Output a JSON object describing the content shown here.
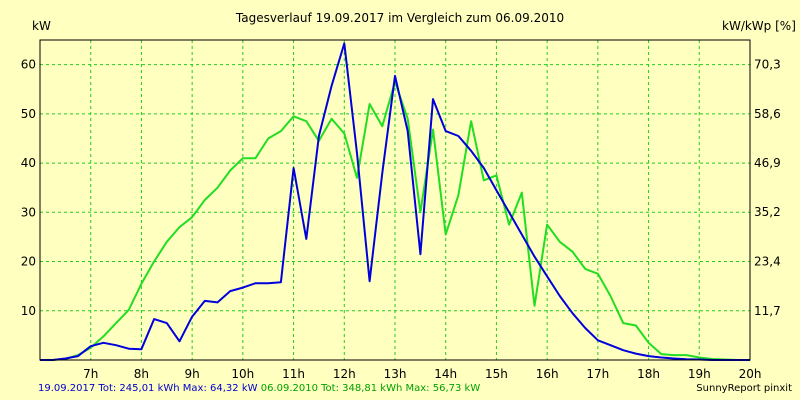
{
  "chart_data": {
    "type": "line",
    "title": "Tagesverlauf 19.09.2017 im Vergleich zum 06.09.2010",
    "ylabel_left": "kW",
    "ylabel_right": "kW/kWp [%]",
    "ylim": [
      0,
      65
    ],
    "xlim": [
      6.0,
      20.0
    ],
    "grid": true,
    "x_ticks": [
      7,
      8,
      9,
      10,
      11,
      12,
      13,
      14,
      15,
      16,
      17,
      18,
      19,
      20
    ],
    "x_tick_labels": [
      "7h",
      "8h",
      "9h",
      "10h",
      "11h",
      "12h",
      "13h",
      "14h",
      "15h",
      "16h",
      "17h",
      "18h",
      "19h",
      "20h"
    ],
    "y_left_ticks": [
      10,
      20,
      30,
      40,
      50,
      60
    ],
    "y_left_tick_labels": [
      "10",
      "20",
      "30",
      "40",
      "50",
      "60"
    ],
    "y_right_ticks": [
      11.7,
      23.4,
      35.2,
      46.9,
      58.6,
      70.3
    ],
    "y_right_tick_labels": [
      "11,7",
      "23,4",
      "35,2",
      "46,9",
      "58,6",
      "70,3"
    ],
    "series": [
      {
        "color": "#0000dd",
        "x": [
          6.0,
          6.25,
          6.5,
          6.75,
          7.0,
          7.25,
          7.5,
          7.75,
          8.0,
          8.25,
          8.5,
          8.75,
          9.0,
          9.25,
          9.5,
          9.75,
          10.0,
          10.25,
          10.5,
          10.75,
          11.0,
          11.25,
          11.5,
          11.75,
          12.0,
          12.25,
          12.5,
          12.75,
          13.0,
          13.25,
          13.5,
          13.75,
          14.0,
          14.25,
          14.5,
          14.75,
          15.0,
          15.25,
          15.5,
          15.75,
          16.0,
          16.25,
          16.5,
          16.75,
          17.0,
          17.25,
          17.5,
          17.75,
          18.0,
          18.25,
          18.5,
          18.75,
          19.0,
          19.25,
          19.5,
          19.75,
          20.0
        ],
        "values": [
          0,
          0,
          0.3,
          0.8,
          2.8,
          3.5,
          3.0,
          2.3,
          2.2,
          8.3,
          7.5,
          3.8,
          8.8,
          12.0,
          11.7,
          14.0,
          14.7,
          15.6,
          15.6,
          15.8,
          39.0,
          24.6,
          45.5,
          55.7,
          64.3,
          42.0,
          16.0,
          38.0,
          57.7,
          46.5,
          21.5,
          53.0,
          46.5,
          45.5,
          42.5,
          39.0,
          34.5,
          30.0,
          25.5,
          21.0,
          17.0,
          13.0,
          9.5,
          6.5,
          4.0,
          3.0,
          2.0,
          1.3,
          0.8,
          0.5,
          0.3,
          0.15,
          0.1,
          0,
          0,
          0,
          0
        ]
      },
      {
        "color": "#22dd22",
        "x": [
          6.0,
          6.25,
          6.5,
          6.75,
          7.0,
          7.25,
          7.5,
          7.75,
          8.0,
          8.25,
          8.5,
          8.75,
          9.0,
          9.25,
          9.5,
          9.75,
          10.0,
          10.25,
          10.5,
          10.75,
          11.0,
          11.25,
          11.5,
          11.75,
          12.0,
          12.25,
          12.5,
          12.75,
          13.0,
          13.25,
          13.5,
          13.75,
          14.0,
          14.25,
          14.5,
          14.75,
          15.0,
          15.25,
          15.5,
          15.75,
          16.0,
          16.25,
          16.5,
          16.75,
          17.0,
          17.25,
          17.5,
          17.75,
          18.0,
          18.25,
          18.5,
          18.75,
          19.0,
          19.25,
          19.5,
          19.75,
          20.0
        ],
        "values": [
          0,
          0,
          0.2,
          1.0,
          2.5,
          4.8,
          7.5,
          10.2,
          15.5,
          20.0,
          24.0,
          27.0,
          29.0,
          32.5,
          35.0,
          38.5,
          41.0,
          41.0,
          45.0,
          46.5,
          49.5,
          48.5,
          44.5,
          49.0,
          46.0,
          37.0,
          52.0,
          47.5,
          56.5,
          49.0,
          30.0,
          46.8,
          25.5,
          33.5,
          48.5,
          36.5,
          37.5,
          27.5,
          34.0,
          11.0,
          27.5,
          24.0,
          22.0,
          18.5,
          17.5,
          13.0,
          7.5,
          7.0,
          3.5,
          1.2,
          1.0,
          1.0,
          0.5,
          0.2,
          0.1,
          0,
          0
        ]
      }
    ]
  },
  "footer": {
    "blue_text": "19.09.2017 Tot: 245,01 kWh Max: 64,32 kW",
    "green_text": "06.09.2010 Tot: 348,81 kWh Max: 56,73 kW",
    "credit": "SunnyReport pinxit"
  }
}
